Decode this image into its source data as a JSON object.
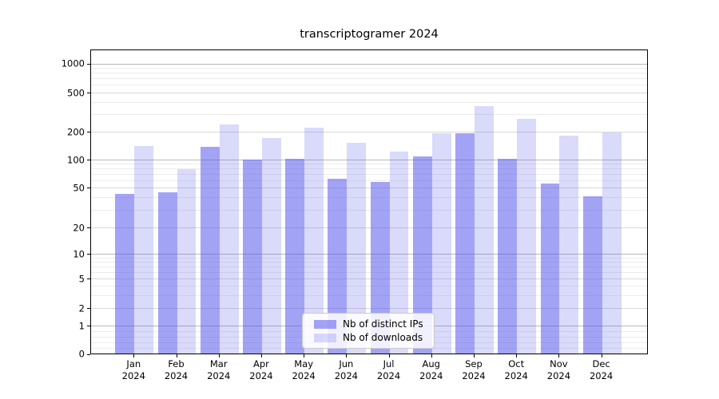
{
  "title": "transcriptogramer 2024",
  "chart_data": {
    "type": "bar",
    "title": "transcriptogramer 2024",
    "scale": "symlog",
    "categories": [
      "Jan",
      "Feb",
      "Mar",
      "Apr",
      "May",
      "Jun",
      "Jul",
      "Aug",
      "Sep",
      "Oct",
      "Nov",
      "Dec"
    ],
    "category_sub": "2024",
    "series": [
      {
        "name": "Nb of distinct IPs",
        "color": "rgba(88,88,238,0.55)",
        "values": [
          43,
          45,
          136,
          100,
          102,
          62,
          58,
          109,
          191,
          103,
          55,
          41
        ]
      },
      {
        "name": "Nb of downloads",
        "color": "rgba(88,88,238,0.22)",
        "values": [
          139,
          79,
          237,
          170,
          221,
          151,
          121,
          193,
          361,
          272,
          181,
          196
        ]
      }
    ],
    "yticks": [
      0,
      1,
      2,
      5,
      10,
      20,
      50,
      100,
      200,
      500,
      1000
    ],
    "ylim": [
      0,
      1300
    ],
    "xlabel": "",
    "ylabel": "",
    "legend_position": "lower center",
    "grid": "both"
  },
  "colors": {
    "grid_major": "#b9b9b9",
    "grid_mid": "#d9d9d9",
    "grid_minor": "#ececec",
    "spine": "#000000",
    "legend_border": "#cccccc",
    "legend_bg": "rgba(255,255,255,0.85)"
  }
}
